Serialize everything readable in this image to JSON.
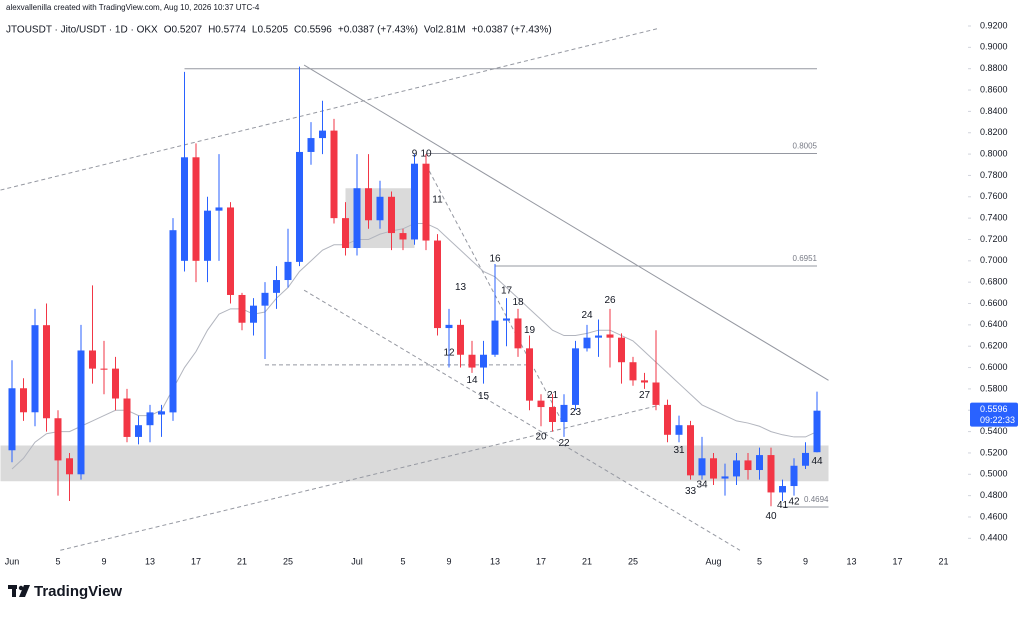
{
  "header": {
    "credit": "alexvallenilla created with TradingView.com, Aug 10, 2026 10:37 UTC-4",
    "legend": [
      "JTOUSDT · Jito/USDT · 1D · OKX",
      "O0.5207",
      "H0.5774",
      "L0.5205",
      "C0.5596",
      "+0.0387 (+7.43%)",
      "Vol2.81M",
      "+0.0387 (+7.43%)"
    ]
  },
  "footer": {
    "brand": "TradingView"
  },
  "chart_data": {
    "type": "candlestick",
    "up_color": "#2962ff",
    "down_color": "#f23645",
    "ma_color": "#b2b5be",
    "categories": [
      "Jun",
      null,
      null,
      null,
      "5",
      null,
      null,
      null,
      "9",
      null,
      null,
      null,
      "13",
      null,
      null,
      null,
      "17",
      null,
      null,
      null,
      "21",
      null,
      null,
      null,
      "25",
      null,
      null,
      null,
      null,
      null,
      "Jul",
      null,
      null,
      null,
      "5",
      null,
      null,
      null,
      "9",
      null,
      null,
      null,
      "13",
      null,
      null,
      null,
      "17",
      null,
      null,
      null,
      "21",
      null,
      null,
      null,
      "25",
      null,
      null,
      null,
      null,
      null,
      null,
      "Aug",
      null,
      null,
      null,
      "5",
      null,
      null,
      null,
      "9",
      null,
      null,
      null,
      "13",
      null,
      null,
      null,
      "17",
      null,
      null,
      null,
      "21",
      null,
      null
    ],
    "open": [
      0.5225,
      0.5806,
      0.5581,
      0.6397,
      0.5525,
      0.515,
      0.5,
      0.616,
      0.599,
      0.599,
      0.571,
      0.535,
      0.546,
      0.556,
      0.558,
      0.7,
      0.797,
      0.7,
      0.747,
      0.75,
      0.668,
      0.642,
      0.658,
      0.67,
      0.682,
      0.699,
      0.802,
      0.815,
      0.822,
      0.74,
      0.712,
      0.768,
      0.738,
      0.76,
      0.726,
      0.72,
      0.791,
      0.719,
      0.637,
      0.64,
      0.612,
      0.6,
      0.612,
      0.644,
      0.646,
      0.618,
      0.569,
      0.563,
      0.549,
      0.565,
      0.618,
      0.628,
      0.631,
      0.628,
      0.605,
      0.588,
      0.586,
      0.565,
      0.537,
      0.546,
      0.499,
      0.515,
      0.496,
      0.498,
      0.513,
      0.504,
      0.518,
      0.483,
      0.489,
      0.508,
      0.5207,
      null,
      null,
      null,
      null,
      null,
      null,
      null,
      null,
      null,
      null,
      null,
      null,
      null
    ],
    "high": [
      0.6069,
      0.59,
      0.655,
      0.66,
      0.56,
      0.52,
      0.64,
      0.677,
      0.625,
      0.61,
      0.58,
      0.555,
      0.565,
      0.565,
      0.74,
      0.877,
      0.81,
      0.76,
      0.8,
      0.755,
      0.67,
      0.665,
      0.68,
      0.695,
      0.73,
      0.882,
      0.83,
      0.85,
      0.833,
      0.755,
      0.8,
      0.8,
      0.775,
      0.765,
      0.73,
      0.8,
      0.8,
      0.725,
      0.655,
      0.645,
      0.625,
      0.625,
      0.697,
      0.665,
      0.655,
      0.63,
      0.575,
      0.575,
      0.575,
      0.625,
      0.64,
      0.645,
      0.655,
      0.632,
      0.61,
      0.595,
      0.635,
      0.57,
      0.555,
      0.55,
      0.535,
      0.52,
      0.51,
      0.52,
      0.52,
      0.525,
      0.525,
      0.495,
      0.515,
      0.53,
      0.5774,
      null,
      null,
      null,
      null,
      null,
      null,
      null,
      null,
      null,
      null,
      null,
      null,
      null
    ],
    "low": [
      0.5113,
      0.55,
      0.545,
      0.54,
      0.48,
      0.475,
      0.495,
      0.585,
      0.575,
      0.56,
      0.53,
      0.528,
      0.53,
      0.535,
      0.55,
      0.69,
      0.68,
      0.68,
      0.7,
      0.66,
      0.635,
      0.63,
      0.608,
      0.655,
      0.675,
      0.695,
      0.79,
      0.8,
      0.735,
      0.705,
      0.705,
      0.73,
      0.73,
      0.71,
      0.71,
      0.715,
      0.71,
      0.63,
      0.6,
      0.6,
      0.595,
      0.585,
      0.61,
      0.62,
      0.61,
      0.56,
      0.545,
      0.54,
      0.535,
      0.56,
      0.615,
      0.61,
      0.6,
      0.585,
      0.583,
      0.58,
      0.56,
      0.53,
      0.53,
      0.495,
      0.495,
      0.49,
      0.48,
      0.49,
      0.495,
      0.495,
      0.47,
      0.475,
      0.48,
      0.505,
      0.5205,
      null,
      null,
      null,
      null,
      null,
      null,
      null,
      null,
      null,
      null,
      null,
      null,
      null
    ],
    "close": [
      0.5806,
      0.5581,
      0.6397,
      0.5525,
      0.513,
      0.5,
      0.616,
      0.599,
      0.598,
      0.571,
      0.535,
      0.546,
      0.558,
      0.559,
      0.7287,
      0.797,
      0.7,
      0.747,
      0.75,
      0.668,
      0.642,
      0.658,
      0.67,
      0.682,
      0.699,
      0.802,
      0.815,
      0.822,
      0.74,
      0.712,
      0.768,
      0.738,
      0.76,
      0.726,
      0.72,
      0.791,
      0.719,
      0.637,
      0.64,
      0.612,
      0.6,
      0.612,
      0.644,
      0.646,
      0.618,
      0.569,
      0.563,
      0.549,
      0.565,
      0.618,
      0.628,
      0.63,
      0.628,
      0.605,
      0.588,
      0.586,
      0.565,
      0.537,
      0.546,
      0.499,
      0.515,
      0.496,
      0.498,
      0.513,
      0.504,
      0.518,
      0.483,
      0.489,
      0.508,
      0.52,
      0.5596,
      null,
      null,
      null,
      null,
      null,
      null,
      null,
      null,
      null,
      null,
      null,
      null,
      null
    ],
    "ma": [
      0.505,
      0.515,
      0.53,
      0.538,
      0.54,
      0.54,
      0.545,
      0.55,
      0.555,
      0.56,
      0.56,
      0.555,
      0.555,
      0.56,
      0.58,
      0.6,
      0.615,
      0.635,
      0.65,
      0.655,
      0.655,
      0.65,
      0.652,
      0.665,
      0.675,
      0.69,
      0.7,
      0.71,
      0.715,
      0.715,
      0.72,
      0.72,
      0.725,
      0.728,
      0.73,
      0.735,
      0.735,
      0.73,
      0.72,
      0.71,
      0.7,
      0.69,
      0.685,
      0.675,
      0.665,
      0.655,
      0.645,
      0.635,
      0.63,
      0.63,
      0.632,
      0.635,
      0.635,
      0.63,
      0.625,
      0.615,
      0.605,
      0.595,
      0.585,
      0.575,
      0.565,
      0.56,
      0.555,
      0.55,
      0.548,
      0.545,
      0.54,
      0.537,
      0.535,
      0.535,
      0.54,
      null,
      null,
      null,
      null,
      null,
      null,
      null,
      null,
      null,
      null,
      null,
      null,
      null
    ],
    "ylim": [
      0.43,
      0.935
    ],
    "yticks": [
      {
        "value": 0.44,
        "label": "0.4400"
      },
      {
        "value": 0.46,
        "label": "0.4600"
      },
      {
        "value": 0.48,
        "label": "0.4800"
      },
      {
        "value": 0.5,
        "label": "0.5000"
      },
      {
        "value": 0.52,
        "label": "0.5200"
      },
      {
        "value": 0.54,
        "label": "0.5400"
      },
      {
        "value": 0.56,
        "label": "0.5600"
      },
      {
        "value": 0.58,
        "label": "0.5800"
      },
      {
        "value": 0.6,
        "label": "0.6000"
      },
      {
        "value": 0.62,
        "label": "0.6200"
      },
      {
        "value": 0.64,
        "label": "0.6400"
      },
      {
        "value": 0.66,
        "label": "0.6600"
      },
      {
        "value": 0.68,
        "label": "0.6800"
      },
      {
        "value": 0.7,
        "label": "0.7000"
      },
      {
        "value": 0.72,
        "label": "0.7200"
      },
      {
        "value": 0.74,
        "label": "0.7400"
      },
      {
        "value": 0.76,
        "label": "0.7600"
      },
      {
        "value": 0.78,
        "label": "0.7800"
      },
      {
        "value": 0.8,
        "label": "0.8000"
      },
      {
        "value": 0.82,
        "label": "0.8200"
      },
      {
        "value": 0.84,
        "label": "0.8400"
      },
      {
        "value": 0.86,
        "label": "0.8600"
      },
      {
        "value": 0.88,
        "label": "0.8800"
      },
      {
        "value": 0.9,
        "label": "0.9000"
      },
      {
        "value": 0.92,
        "label": "0.9200"
      }
    ],
    "last_price": {
      "value": 0.5596,
      "countdown": "09:22:33"
    },
    "zones": [
      {
        "low": 0.4935,
        "high": 0.527,
        "from": -1,
        "to": 71
      },
      {
        "low": 0.712,
        "high": 0.768,
        "from": 29,
        "to": 35
      }
    ],
    "hlines": [
      {
        "value": 0.88,
        "from": 15,
        "to": 70,
        "labeled": false
      },
      {
        "value": 0.8005,
        "from": 36,
        "to": 70,
        "labeled": true
      },
      {
        "value": 0.6951,
        "from": 42,
        "to": 70,
        "labeled": true
      },
      {
        "value": 0.6025,
        "from": 22,
        "to": 45,
        "labeled": false,
        "dashed": true
      },
      {
        "value": 0.4694,
        "from": 67,
        "to": 71,
        "labeled": true
      }
    ],
    "trendlines": [
      {
        "from": [
          -1,
          0.7663
        ],
        "to": [
          56.3,
          0.918
        ],
        "dashed": true
      },
      {
        "from": [
          25.4,
          0.8834
        ],
        "to": [
          71,
          0.588
        ],
        "dashed": false
      },
      {
        "from": [
          4.2,
          0.4288
        ],
        "to": [
          56.3,
          0.5647
        ],
        "dashed": true
      },
      {
        "from": [
          25.4,
          0.6725
        ],
        "to": [
          63.3,
          0.4288
        ],
        "dashed": true
      },
      {
        "from": [
          36,
          0.79
        ],
        "to": [
          48,
          0.546
        ],
        "dashed": true
      }
    ],
    "annotations": [
      {
        "text": "9",
        "x": 35,
        "y": 0.8
      },
      {
        "text": "10",
        "x": 36,
        "y": 0.8
      },
      {
        "text": "11",
        "x": 37,
        "y": 0.757
      },
      {
        "text": "12",
        "x": 38,
        "y": 0.614
      },
      {
        "text": "13",
        "x": 39,
        "y": 0.675
      },
      {
        "text": "14",
        "x": 40,
        "y": 0.588
      },
      {
        "text": "15",
        "x": 41,
        "y": 0.573
      },
      {
        "text": "16",
        "x": 42,
        "y": 0.702
      },
      {
        "text": "17",
        "x": 43,
        "y": 0.672
      },
      {
        "text": "18",
        "x": 44,
        "y": 0.661
      },
      {
        "text": "19",
        "x": 45,
        "y": 0.635
      },
      {
        "text": "20",
        "x": 46,
        "y": 0.535
      },
      {
        "text": "21",
        "x": 47,
        "y": 0.574
      },
      {
        "text": "22",
        "x": 48,
        "y": 0.529
      },
      {
        "text": "23",
        "x": 49,
        "y": 0.558
      },
      {
        "text": "24",
        "x": 50,
        "y": 0.649
      },
      {
        "text": "26",
        "x": 52,
        "y": 0.663
      },
      {
        "text": "27",
        "x": 55,
        "y": 0.574
      },
      {
        "text": "31",
        "x": 58,
        "y": 0.5225
      },
      {
        "text": "33",
        "x": 59,
        "y": 0.484
      },
      {
        "text": "34",
        "x": 60,
        "y": 0.49
      },
      {
        "text": "40",
        "x": 66,
        "y": 0.4606
      },
      {
        "text": "41",
        "x": 67,
        "y": 0.471
      },
      {
        "text": "42",
        "x": 68,
        "y": 0.474
      },
      {
        "text": "44",
        "x": 70,
        "y": 0.512
      }
    ]
  }
}
